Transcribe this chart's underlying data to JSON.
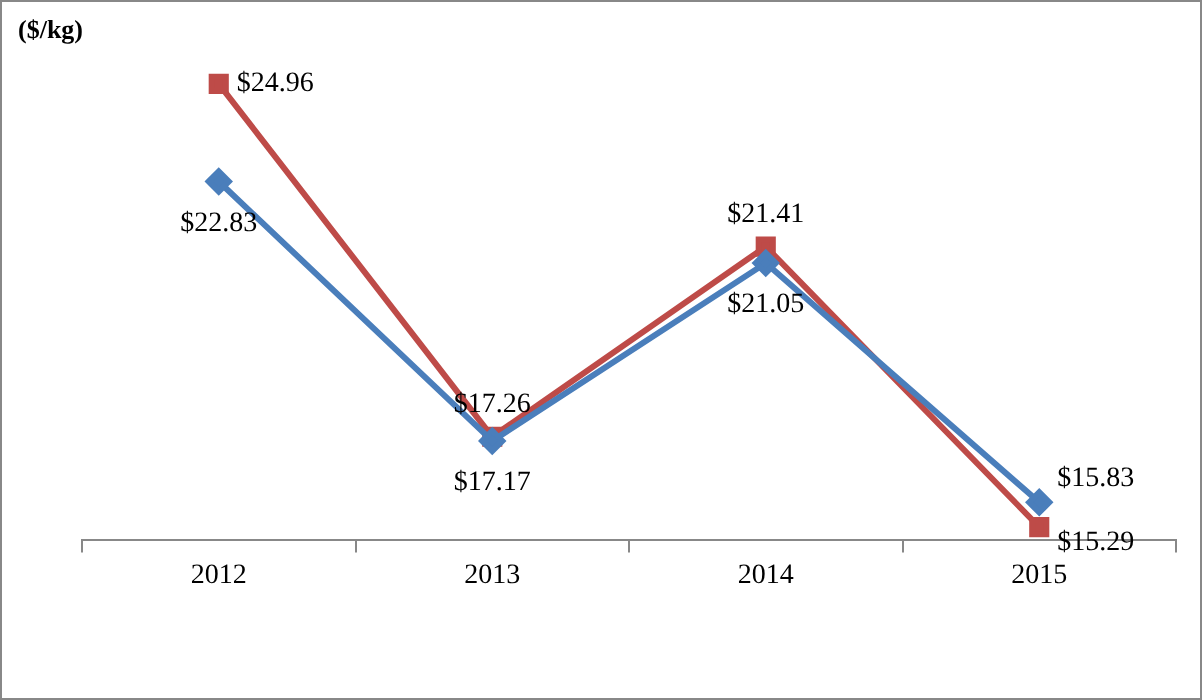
{
  "chart_data": {
    "type": "line",
    "ylabel": "($/kg)",
    "categories": [
      "2012",
      "2013",
      "2014",
      "2015"
    ],
    "series": [
      {
        "color": "#4a7ebb",
        "marker": "diamond",
        "values": [
          22.83,
          17.17,
          21.05,
          15.83
        ],
        "value_labels": [
          "$22.83",
          "$17.17",
          "$21.05",
          "$15.83"
        ]
      },
      {
        "color": "#be4b48",
        "marker": "square",
        "values": [
          24.96,
          17.26,
          21.41,
          15.29
        ],
        "value_labels": [
          "$24.96",
          "$17.26",
          "$21.41",
          "$15.29"
        ]
      }
    ],
    "grid": false,
    "legend": false,
    "tick_labels": "x"
  }
}
